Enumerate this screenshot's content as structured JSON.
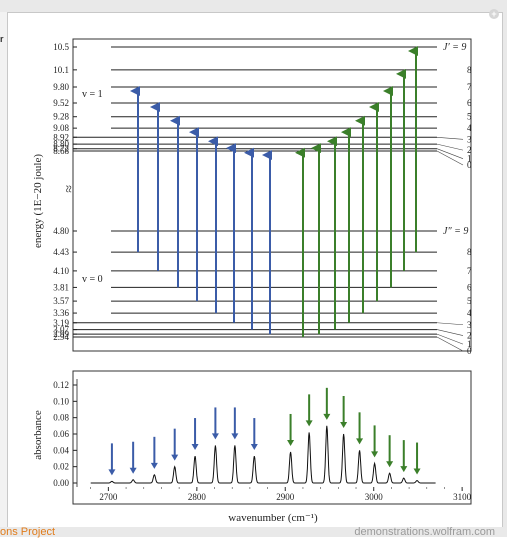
{
  "footer": {
    "left_text": "ons Project",
    "right_text": "demonstrations.wolfram.com"
  },
  "left_strip_char": "r",
  "corner_button": "+",
  "energy_diagram": {
    "ylabel": "energy (1E−20 joule)",
    "upper_ticks": [
      "10.5",
      "10.1",
      "9.80",
      "9.52",
      "9.28",
      "9.08",
      "8.92",
      "8.80",
      "8.72",
      "8.68"
    ],
    "lower_ticks": [
      "4.80",
      "4.43",
      "4.10",
      "3.81",
      "3.57",
      "3.36",
      "3.19",
      "3.07",
      "2.99",
      "2.94"
    ],
    "upper_state_label": "v = 1",
    "lower_state_label": "v = 0",
    "upper_j_header": "J′ = 9",
    "lower_j_header": "J″ = 9",
    "j_labels_upper": [
      "8",
      "7",
      "6",
      "5",
      "4",
      "3",
      "2",
      "1",
      "0"
    ],
    "j_labels_lower": [
      "8",
      "7",
      "6",
      "5",
      "4",
      "3",
      "2",
      "1",
      "0"
    ],
    "break_mark": "≈",
    "colors": {
      "p_branch": "#3b5ca8",
      "r_branch": "#3b7f2a"
    }
  },
  "spectrum": {
    "xlabel": "wavenumber (cm⁻¹)",
    "ylabel": "absorbance",
    "x_ticks": [
      "2700",
      "2800",
      "2900",
      "3000",
      "3100"
    ],
    "y_ticks": [
      "0.12",
      "0.10",
      "0.08",
      "0.06",
      "0.04",
      "0.02",
      "0.00"
    ]
  },
  "chart_data": {
    "type": "line",
    "xlabel": "wavenumber (cm⁻¹)",
    "ylabel": "absorbance",
    "xlim": [
      2660,
      3110
    ],
    "ylim": [
      0,
      0.125
    ],
    "peaks": [
      {
        "x": 2704,
        "y": 0.002
      },
      {
        "x": 2728,
        "y": 0.004
      },
      {
        "x": 2752,
        "y": 0.01
      },
      {
        "x": 2775,
        "y": 0.02
      },
      {
        "x": 2798,
        "y": 0.033
      },
      {
        "x": 2821,
        "y": 0.046
      },
      {
        "x": 2843,
        "y": 0.046
      },
      {
        "x": 2865,
        "y": 0.033
      },
      {
        "x": 2906,
        "y": 0.038
      },
      {
        "x": 2927,
        "y": 0.062
      },
      {
        "x": 2947,
        "y": 0.07
      },
      {
        "x": 2966,
        "y": 0.06
      },
      {
        "x": 2984,
        "y": 0.04
      },
      {
        "x": 3001,
        "y": 0.024
      },
      {
        "x": 3018,
        "y": 0.012
      },
      {
        "x": 3034,
        "y": 0.006
      },
      {
        "x": 3049,
        "y": 0.003
      }
    ]
  }
}
